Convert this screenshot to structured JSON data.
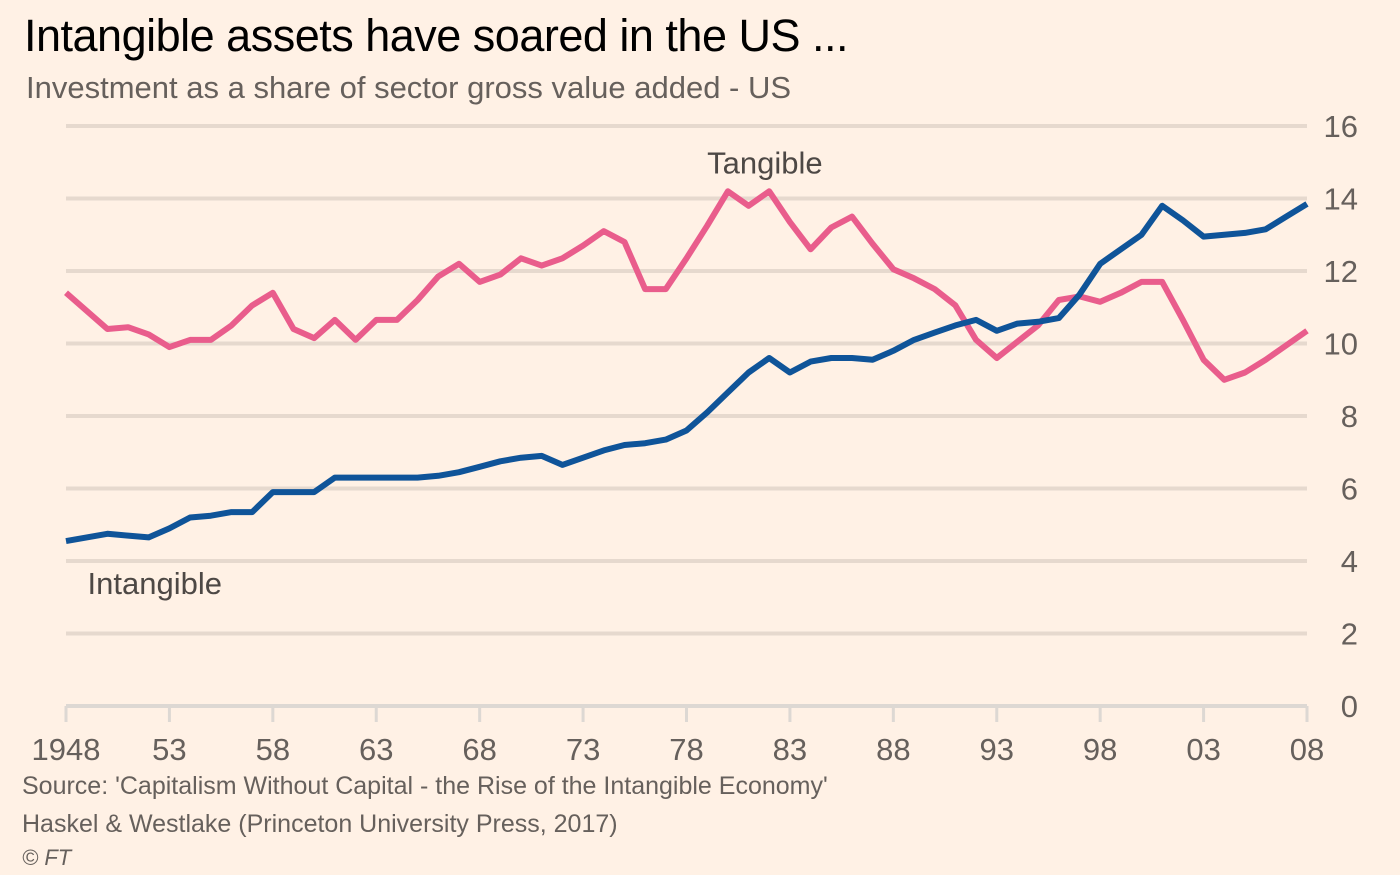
{
  "header": {
    "title": "Intangible assets have soared in the US ...",
    "subtitle": "Investment as a share of sector gross value added - US"
  },
  "footer": {
    "source_line1": "Source: 'Capitalism Without Capital - the Rise of the Intangible Economy'",
    "source_line2": "Haskel & Westlake (Princeton University Press, 2017)",
    "copyright": "© FT"
  },
  "colors": {
    "background": "#FFF1E5",
    "tangible": "#E95D8C",
    "intangible": "#0F5499",
    "grid": "#E6D9CE",
    "axis": "#DDD8D3"
  },
  "chart_data": {
    "type": "line",
    "title": "Intangible assets have soared in the US ...",
    "subtitle": "Investment as a share of sector gross value added - US",
    "xlabel": "",
    "ylabel": "",
    "xlim": [
      1948,
      2008
    ],
    "ylim": [
      0,
      16
    ],
    "y_axis_side": "right",
    "grid": true,
    "x_ticks": [
      1948,
      1953,
      1958,
      1963,
      1968,
      1973,
      1978,
      1983,
      1988,
      1993,
      1998,
      2003,
      2008
    ],
    "x_tick_labels": [
      "1948",
      "53",
      "58",
      "63",
      "68",
      "73",
      "78",
      "83",
      "88",
      "93",
      "98",
      "03",
      "08"
    ],
    "y_ticks": [
      0,
      2,
      4,
      6,
      8,
      10,
      12,
      14,
      16
    ],
    "y_tick_labels": [
      "0",
      "2",
      "4",
      "6",
      "8",
      "10",
      "12",
      "14",
      "16"
    ],
    "x": [
      1948,
      1949,
      1950,
      1951,
      1952,
      1953,
      1954,
      1955,
      1956,
      1957,
      1958,
      1959,
      1960,
      1961,
      1962,
      1963,
      1964,
      1965,
      1966,
      1967,
      1968,
      1969,
      1970,
      1971,
      1972,
      1973,
      1974,
      1975,
      1976,
      1977,
      1978,
      1979,
      1980,
      1981,
      1982,
      1983,
      1984,
      1985,
      1986,
      1987,
      1988,
      1989,
      1990,
      1991,
      1992,
      1993,
      1994,
      1995,
      1996,
      1997,
      1998,
      1999,
      2000,
      2001,
      2002,
      2003,
      2004,
      2005,
      2006,
      2007,
      2008
    ],
    "series": [
      {
        "name": "Tangible",
        "label_text": "Tangible",
        "values": [
          11.4,
          10.9,
          10.4,
          10.45,
          10.25,
          9.9,
          10.1,
          10.1,
          10.5,
          11.05,
          11.4,
          10.4,
          10.15,
          10.65,
          10.1,
          10.65,
          10.65,
          11.2,
          11.85,
          12.2,
          11.7,
          11.9,
          12.35,
          12.15,
          12.35,
          12.7,
          13.1,
          12.8,
          11.5,
          11.5,
          12.35,
          13.25,
          14.2,
          13.8,
          14.2,
          13.35,
          12.6,
          13.2,
          13.5,
          12.75,
          12.05,
          11.8,
          11.5,
          11.05,
          10.1,
          9.6,
          10.05,
          10.5,
          11.2,
          11.3,
          11.15,
          11.4,
          11.7,
          11.7,
          10.65,
          9.55,
          9.0,
          9.2,
          9.55,
          9.95,
          10.35
        ]
      },
      {
        "name": "Intangible",
        "label_text": "Intangible",
        "values": [
          4.55,
          4.65,
          4.75,
          4.7,
          4.65,
          4.9,
          5.2,
          5.25,
          5.35,
          5.35,
          5.9,
          5.9,
          5.9,
          6.3,
          6.3,
          6.3,
          6.3,
          6.3,
          6.35,
          6.45,
          6.6,
          6.75,
          6.85,
          6.9,
          6.65,
          6.85,
          7.05,
          7.2,
          7.25,
          7.35,
          7.6,
          8.1,
          8.65,
          9.2,
          9.6,
          9.2,
          9.5,
          9.6,
          9.6,
          9.55,
          9.8,
          10.1,
          10.3,
          10.5,
          10.65,
          10.35,
          10.55,
          10.6,
          10.7,
          11.35,
          12.2,
          12.6,
          13.0,
          13.8,
          13.4,
          12.95,
          13.0,
          13.05,
          13.15,
          13.5,
          13.85
        ]
      }
    ],
    "annotations": [
      {
        "text": "Tangible",
        "x": 1983,
        "y": 15.0
      },
      {
        "text": "Intangible",
        "x": 1952,
        "y": 3.4
      }
    ],
    "legend": "inline-labels"
  }
}
